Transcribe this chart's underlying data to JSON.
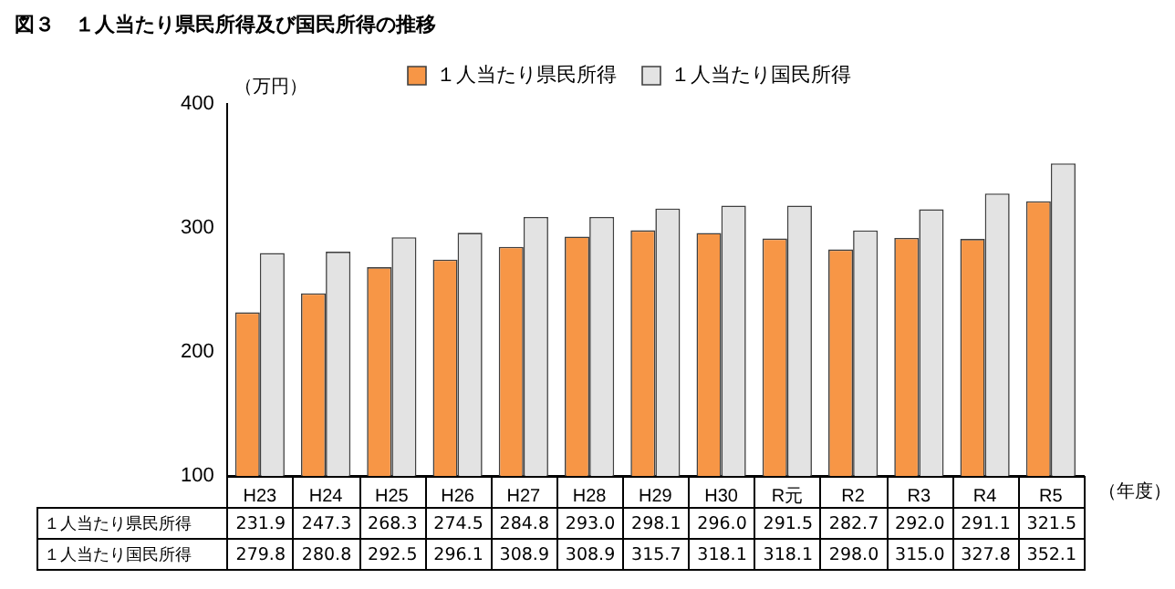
{
  "chart_data": {
    "type": "bar",
    "title": "図３　１人当たり県民所得及び国民所得の推移",
    "ylabel": "（万円）",
    "xlabel": "（年度）",
    "categories": [
      "H23",
      "H24",
      "H25",
      "H26",
      "H27",
      "H28",
      "H29",
      "H30",
      "R元",
      "R2",
      "R3",
      "R4",
      "R5"
    ],
    "series": [
      {
        "name": "１人当たり県民所得",
        "color": "#f79646",
        "values": [
          231.9,
          247.3,
          268.3,
          274.5,
          284.8,
          293.0,
          298.1,
          296.0,
          291.5,
          282.7,
          292.0,
          291.1,
          321.5
        ],
        "value_labels": [
          "231.9",
          "247.3",
          "268.3",
          "274.5",
          "284.8",
          "293.0",
          "298.1",
          "296.0",
          "291.5",
          "282.7",
          "292.0",
          "291.1",
          "321.5"
        ]
      },
      {
        "name": "１人当たり国民所得",
        "color": "#e3e3e3",
        "values": [
          279.8,
          280.8,
          292.5,
          296.1,
          308.9,
          308.9,
          315.7,
          318.1,
          318.1,
          298.0,
          315.0,
          327.8,
          352.1
        ],
        "value_labels": [
          "279.8",
          "280.8",
          "292.5",
          "296.1",
          "308.9",
          "308.9",
          "315.7",
          "318.1",
          "318.1",
          "298.0",
          "315.0",
          "327.8",
          "352.1"
        ]
      }
    ],
    "ylim": [
      100,
      400
    ],
    "yticks": [
      100,
      200,
      300,
      400
    ],
    "grid": false,
    "legend": "top"
  }
}
